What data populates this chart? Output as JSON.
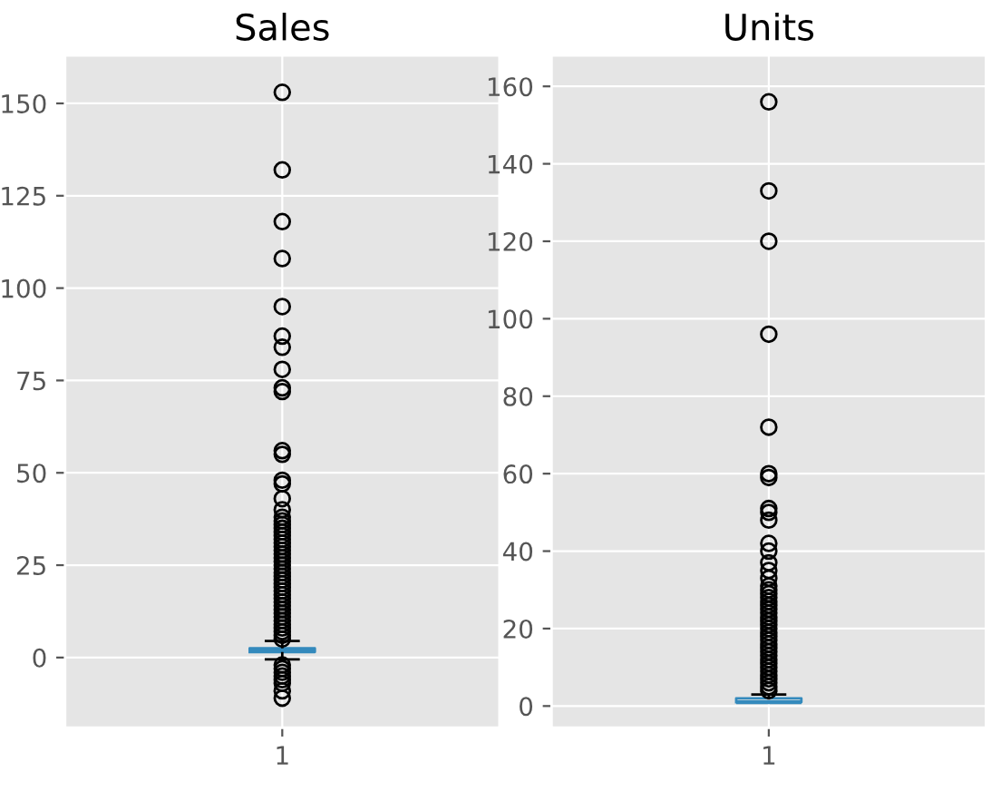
{
  "chart_data": [
    {
      "type": "box",
      "title": "Sales",
      "categories": [
        "1"
      ],
      "ylim": [
        -19,
        163
      ],
      "yticks": [
        0,
        25,
        50,
        75,
        100,
        125,
        150
      ],
      "grid": true,
      "series": [
        {
          "color": "#348abd",
          "boxes": [
            {
              "low": -0.5,
              "q1": 1.5,
              "median": 2,
              "q3": 2.5,
              "high": 4.5,
              "outliers": [
                -11,
                -9,
                -7,
                -6,
                -5,
                -4,
                -3,
                -2,
                5,
                6,
                7,
                8,
                9,
                10,
                11,
                12,
                13,
                14,
                15,
                16,
                17,
                18,
                19,
                20,
                21,
                22,
                23,
                24,
                25,
                26,
                27,
                28,
                29,
                30,
                31,
                32,
                33,
                34,
                35,
                36,
                37,
                38,
                40,
                43,
                47,
                48,
                55,
                56,
                72,
                73,
                78,
                84,
                87,
                95,
                108,
                118,
                132,
                153
              ]
            }
          ]
        }
      ]
    },
    {
      "type": "box",
      "title": "Units",
      "categories": [
        "1"
      ],
      "ylim": [
        -5.6,
        168
      ],
      "yticks": [
        0,
        20,
        40,
        60,
        80,
        100,
        120,
        140,
        160
      ],
      "grid": true,
      "series": [
        {
          "color": "#348abd",
          "boxes": [
            {
              "low": 1,
              "q1": 1,
              "median": 1,
              "q3": 2,
              "high": 3,
              "outliers": [
                4,
                5,
                6,
                7,
                8,
                9,
                10,
                11,
                12,
                13,
                14,
                15,
                16,
                17,
                18,
                19,
                20,
                21,
                22,
                23,
                24,
                25,
                26,
                27,
                28,
                29,
                30,
                31,
                33,
                35,
                37,
                40,
                42,
                48,
                50,
                51,
                59,
                60,
                72,
                96,
                120,
                133,
                156
              ]
            }
          ]
        }
      ]
    }
  ]
}
